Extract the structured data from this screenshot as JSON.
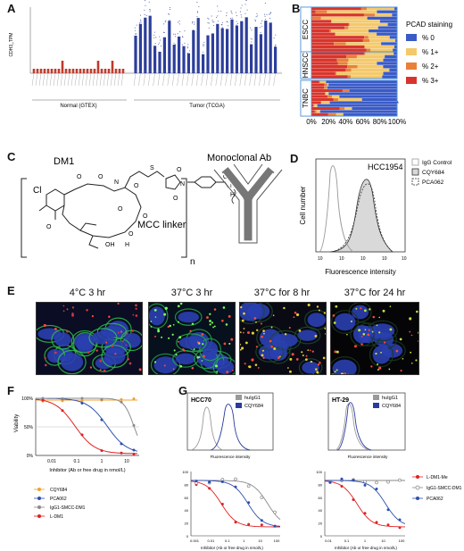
{
  "panel_labels": {
    "A": "A",
    "B": "B",
    "C": "C",
    "D": "D",
    "E": "E",
    "F": "F",
    "G": "G"
  },
  "panelA": {
    "ylabel": "CDH3_TPM",
    "group_normal": "Normal (GTEX)",
    "group_tumor": "Tumor (TCGA)",
    "normal_color": "#c0392b",
    "tumor_color": "#2c3e9b"
  },
  "panelB": {
    "title": "PCAD staining",
    "rows": [
      "ESCC",
      "HNSCC",
      "TNBC"
    ],
    "legend": [
      {
        "label": "% 0",
        "color": "#3a5bc7"
      },
      {
        "label": "% 1+",
        "color": "#f4c96b"
      },
      {
        "label": "% 2+",
        "color": "#e8803a"
      },
      {
        "label": "% 3+",
        "color": "#d9342b"
      }
    ],
    "xticks": [
      "0%",
      "20%",
      "40%",
      "60%",
      "80%",
      "100%"
    ],
    "marker": "*"
  },
  "panelC": {
    "dm1": "DM1",
    "antibody": "Monoclonal Ab",
    "linker": "MCC linker",
    "cl": "Cl",
    "n": "n"
  },
  "panelD": {
    "cell_line": "HCC1954",
    "ylabel": "Cell number",
    "xlabel": "Fluorescence intensity",
    "legend": [
      "IgG Control",
      "CQY684",
      "PCA062"
    ]
  },
  "panelE": {
    "images": [
      {
        "title": "4°C 3 hr"
      },
      {
        "title": "37°C 3 hr"
      },
      {
        "title": "37°C for 8 hr"
      },
      {
        "title": "37°C for 24 hr"
      }
    ]
  },
  "panelF": {
    "ylabel": "Viability",
    "xlabel": "Inhibitor (Ab or free drug in nmol/L)",
    "yticks": [
      "100%",
      "50%",
      "0%"
    ],
    "xticks": [
      "0.01",
      "0.1",
      "1",
      "10"
    ],
    "legend": [
      {
        "label": "CQY684",
        "color": "#f0a030"
      },
      {
        "label": "PCA062",
        "color": "#2b4fb0"
      },
      {
        "label": "IgG1-SMCC-DM1",
        "color": "#8a8a8a"
      },
      {
        "label": "L-DM1",
        "color": "#e02020"
      }
    ]
  },
  "panelG": {
    "left": {
      "cell_line": "HCC70",
      "hist_legend": [
        "huIgG1",
        "CQY684"
      ],
      "hist_xlabel": "Fluorescence intensity",
      "curve_xlabel": "Inhibitor (Ab or free drug in nmol/L)",
      "xticks": [
        "0.001",
        "0.01",
        "0.1",
        "1",
        "10",
        "100"
      ],
      "yticks": [
        "100",
        "80",
        "60",
        "40",
        "20",
        "0"
      ]
    },
    "right": {
      "cell_line": "HT-29",
      "hist_legend": [
        "huIgG1",
        "CQY684"
      ],
      "hist_xlabel": "Fluorescence intensity",
      "curve_xlabel": "Inhibitor (Ab or free drug in nmol/L)",
      "xticks": [
        "0.01",
        "0.1",
        "1",
        "10",
        "100"
      ],
      "yticks": [
        "100",
        "80",
        "60",
        "40",
        "20",
        "0"
      ]
    },
    "legend": [
      {
        "label": "L-DM1-Me",
        "color": "#e02020"
      },
      {
        "label": "IgG1-SMCC-DM1",
        "color": "#8a8a8a"
      },
      {
        "label": "PCA062",
        "color": "#2b4fb0"
      }
    ],
    "hist_colors": {
      "huIgG1": "#999999",
      "CQY684": "#2a3aa0"
    }
  }
}
